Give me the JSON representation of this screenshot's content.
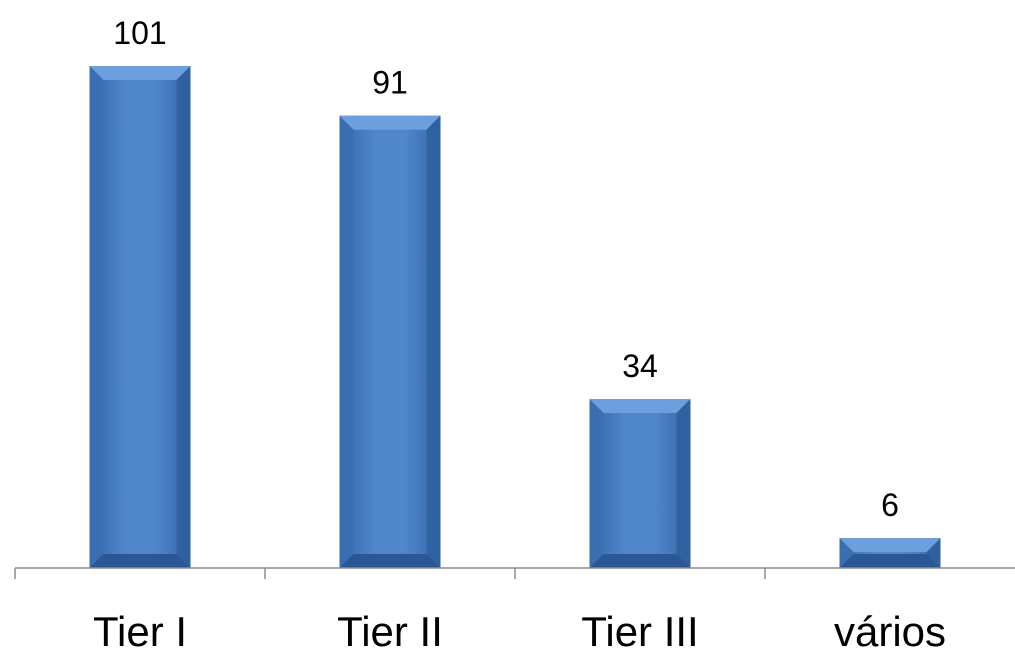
{
  "chart_data": {
    "type": "bar",
    "categories": [
      "Tier I",
      "Tier II",
      "Tier III",
      "vários"
    ],
    "values": [
      101,
      91,
      34,
      6
    ],
    "data_labels": [
      "101",
      "91",
      "34",
      "6"
    ],
    "title": "",
    "xlabel": "",
    "ylabel": "",
    "ylim": [
      0,
      101
    ],
    "grid": false,
    "legend": "none",
    "bar_color": "#4a7ec2"
  }
}
